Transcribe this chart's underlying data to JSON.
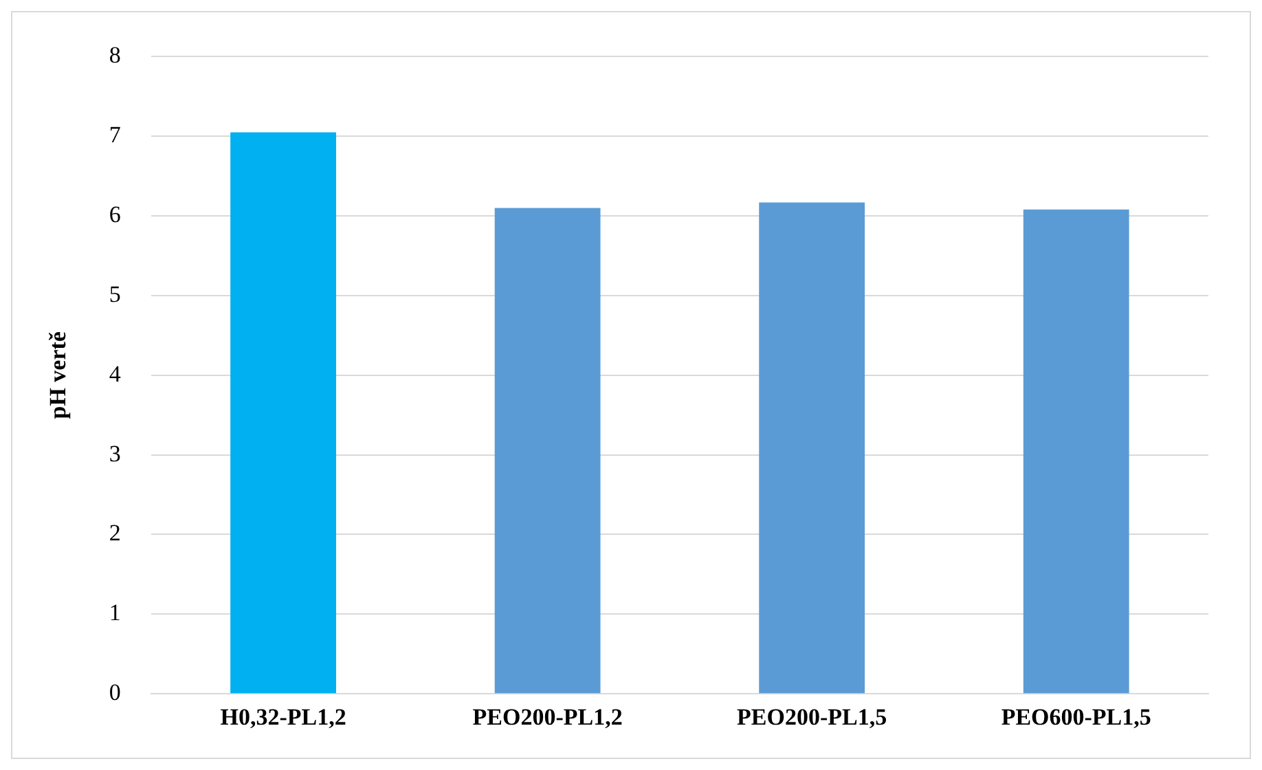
{
  "chart_data": {
    "type": "bar",
    "ylabel": "pH vertě",
    "categories": [
      "H0,32-PL1,2",
      "PEO200-PL1,2",
      "PEO200-PL1,5",
      "PEO600-PL1,5"
    ],
    "values": [
      7.05,
      6.1,
      6.17,
      6.08
    ],
    "colors": [
      "#00b0f0",
      "#5b9bd5",
      "#5b9bd5",
      "#5b9bd5"
    ],
    "ylim": [
      0,
      8
    ],
    "yticks": [
      0,
      1,
      2,
      3,
      4,
      5,
      6,
      7,
      8
    ],
    "grid": "y"
  }
}
